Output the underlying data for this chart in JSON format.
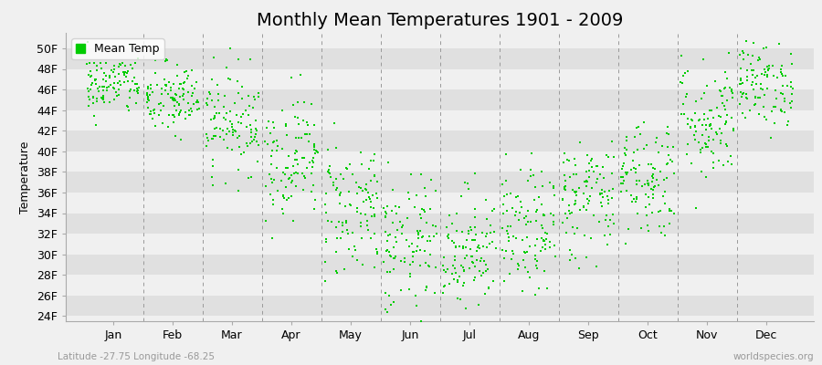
{
  "title": "Monthly Mean Temperatures 1901 - 2009",
  "ylabel": "Temperature",
  "xlabel_labels": [
    "Jan",
    "Feb",
    "Mar",
    "Apr",
    "May",
    "Jun",
    "Jul",
    "Aug",
    "Sep",
    "Oct",
    "Nov",
    "Dec"
  ],
  "ytick_labels": [
    "24F",
    "26F",
    "28F",
    "30F",
    "32F",
    "34F",
    "36F",
    "38F",
    "40F",
    "42F",
    "44F",
    "46F",
    "48F",
    "50F"
  ],
  "ytick_values": [
    24,
    26,
    28,
    30,
    32,
    34,
    36,
    38,
    40,
    42,
    44,
    46,
    48,
    50
  ],
  "ylim": [
    23.5,
    51.5
  ],
  "xlim": [
    -0.3,
    12.3
  ],
  "dot_color": "#00CC00",
  "dot_size": 3,
  "bg_color": "#F0F0F0",
  "band_color_light": "#F0F0F0",
  "band_color_dark": "#E0E0E0",
  "title_fontsize": 14,
  "label_fontsize": 9,
  "tick_fontsize": 9,
  "footer_left": "Latitude -27.75 Longitude -68.25",
  "footer_right": "worldspecies.org",
  "legend_label": "Mean Temp",
  "num_years": 109,
  "monthly_means": [
    46.5,
    45.0,
    43.0,
    39.5,
    34.5,
    30.5,
    30.5,
    32.0,
    35.5,
    37.5,
    43.0,
    46.5
  ],
  "monthly_spreads": [
    1.5,
    1.8,
    2.5,
    3.0,
    3.5,
    3.5,
    3.0,
    3.0,
    3.0,
    3.0,
    3.0,
    2.0
  ]
}
